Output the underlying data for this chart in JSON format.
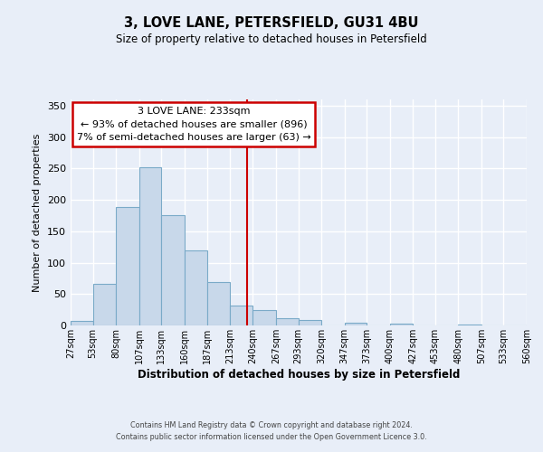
{
  "title": "3, LOVE LANE, PETERSFIELD, GU31 4BU",
  "subtitle": "Size of property relative to detached houses in Petersfield",
  "xlabel": "Distribution of detached houses by size in Petersfield",
  "ylabel": "Number of detached properties",
  "bar_color": "#c8d8ea",
  "bar_edge_color": "#7aaac8",
  "background_color": "#e8eef8",
  "plot_bg_color": "#e8eef8",
  "grid_color": "#ffffff",
  "vline_value": 233,
  "vline_color": "#cc0000",
  "annotation_text_line1": "3 LOVE LANE: 233sqm",
  "annotation_text_line2": "← 93% of detached houses are smaller (896)",
  "annotation_text_line3": "7% of semi-detached houses are larger (63) →",
  "annotation_box_edgecolor": "#cc0000",
  "footer_line1": "Contains HM Land Registry data © Crown copyright and database right 2024.",
  "footer_line2": "Contains public sector information licensed under the Open Government Licence 3.0.",
  "tick_labels": [
    "27sqm",
    "53sqm",
    "80sqm",
    "107sqm",
    "133sqm",
    "160sqm",
    "187sqm",
    "213sqm",
    "240sqm",
    "267sqm",
    "293sqm",
    "320sqm",
    "347sqm",
    "373sqm",
    "400sqm",
    "427sqm",
    "453sqm",
    "480sqm",
    "507sqm",
    "533sqm",
    "560sqm"
  ],
  "bin_edges": [
    27,
    53,
    80,
    107,
    133,
    160,
    187,
    213,
    240,
    267,
    293,
    320,
    347,
    373,
    400,
    427,
    453,
    480,
    507,
    533,
    560
  ],
  "bar_heights": [
    7,
    66,
    188,
    252,
    176,
    119,
    69,
    32,
    25,
    11,
    9,
    0,
    4,
    0,
    3,
    0,
    0,
    1,
    0,
    0,
    1
  ],
  "ylim": [
    0,
    360
  ],
  "yticks": [
    0,
    50,
    100,
    150,
    200,
    250,
    300,
    350
  ]
}
